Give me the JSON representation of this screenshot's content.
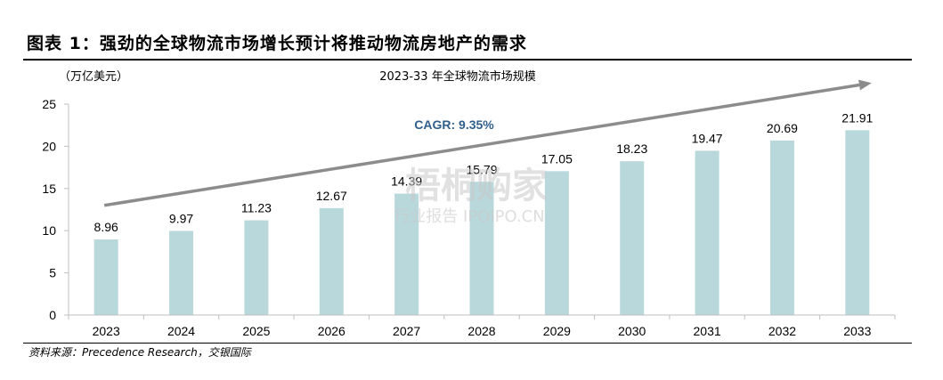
{
  "figure_title": "图表 1：强劲的全球物流市场增长预计将推动物流房地产的需求",
  "source_note": "资料来源：Precedence Research，交银国际",
  "watermark": {
    "main": "梧桐购家",
    "sub": "行业报告 IPOIPO.CN"
  },
  "colors": {
    "bar": "#b9d8dc",
    "arrow": "#8c8c8c",
    "cagr": "#2f5f8a",
    "axis": "#bfbfbf"
  },
  "chart_data": {
    "type": "bar",
    "title": "2023-33 年全球物流市场规模",
    "unit_label": "（万亿美元）",
    "categories": [
      "2023",
      "2024",
      "2025",
      "2026",
      "2027",
      "2028",
      "2029",
      "2030",
      "2031",
      "2032",
      "2033"
    ],
    "values": [
      8.96,
      9.97,
      11.23,
      12.67,
      14.39,
      15.79,
      17.05,
      18.23,
      19.47,
      20.69,
      21.91
    ],
    "value_labels": [
      "8.96",
      "9.97",
      "11.23",
      "12.67",
      "14.39",
      "15.79",
      "17.05",
      "18.23",
      "19.47",
      "20.69",
      "21.91"
    ],
    "y_ticks": [
      "0",
      "5",
      "10",
      "15",
      "20",
      "25"
    ],
    "ylim": [
      0,
      25
    ],
    "annotation": "CAGR: 9.35%",
    "trend_arrow": true,
    "legend": "none",
    "grid": false
  }
}
